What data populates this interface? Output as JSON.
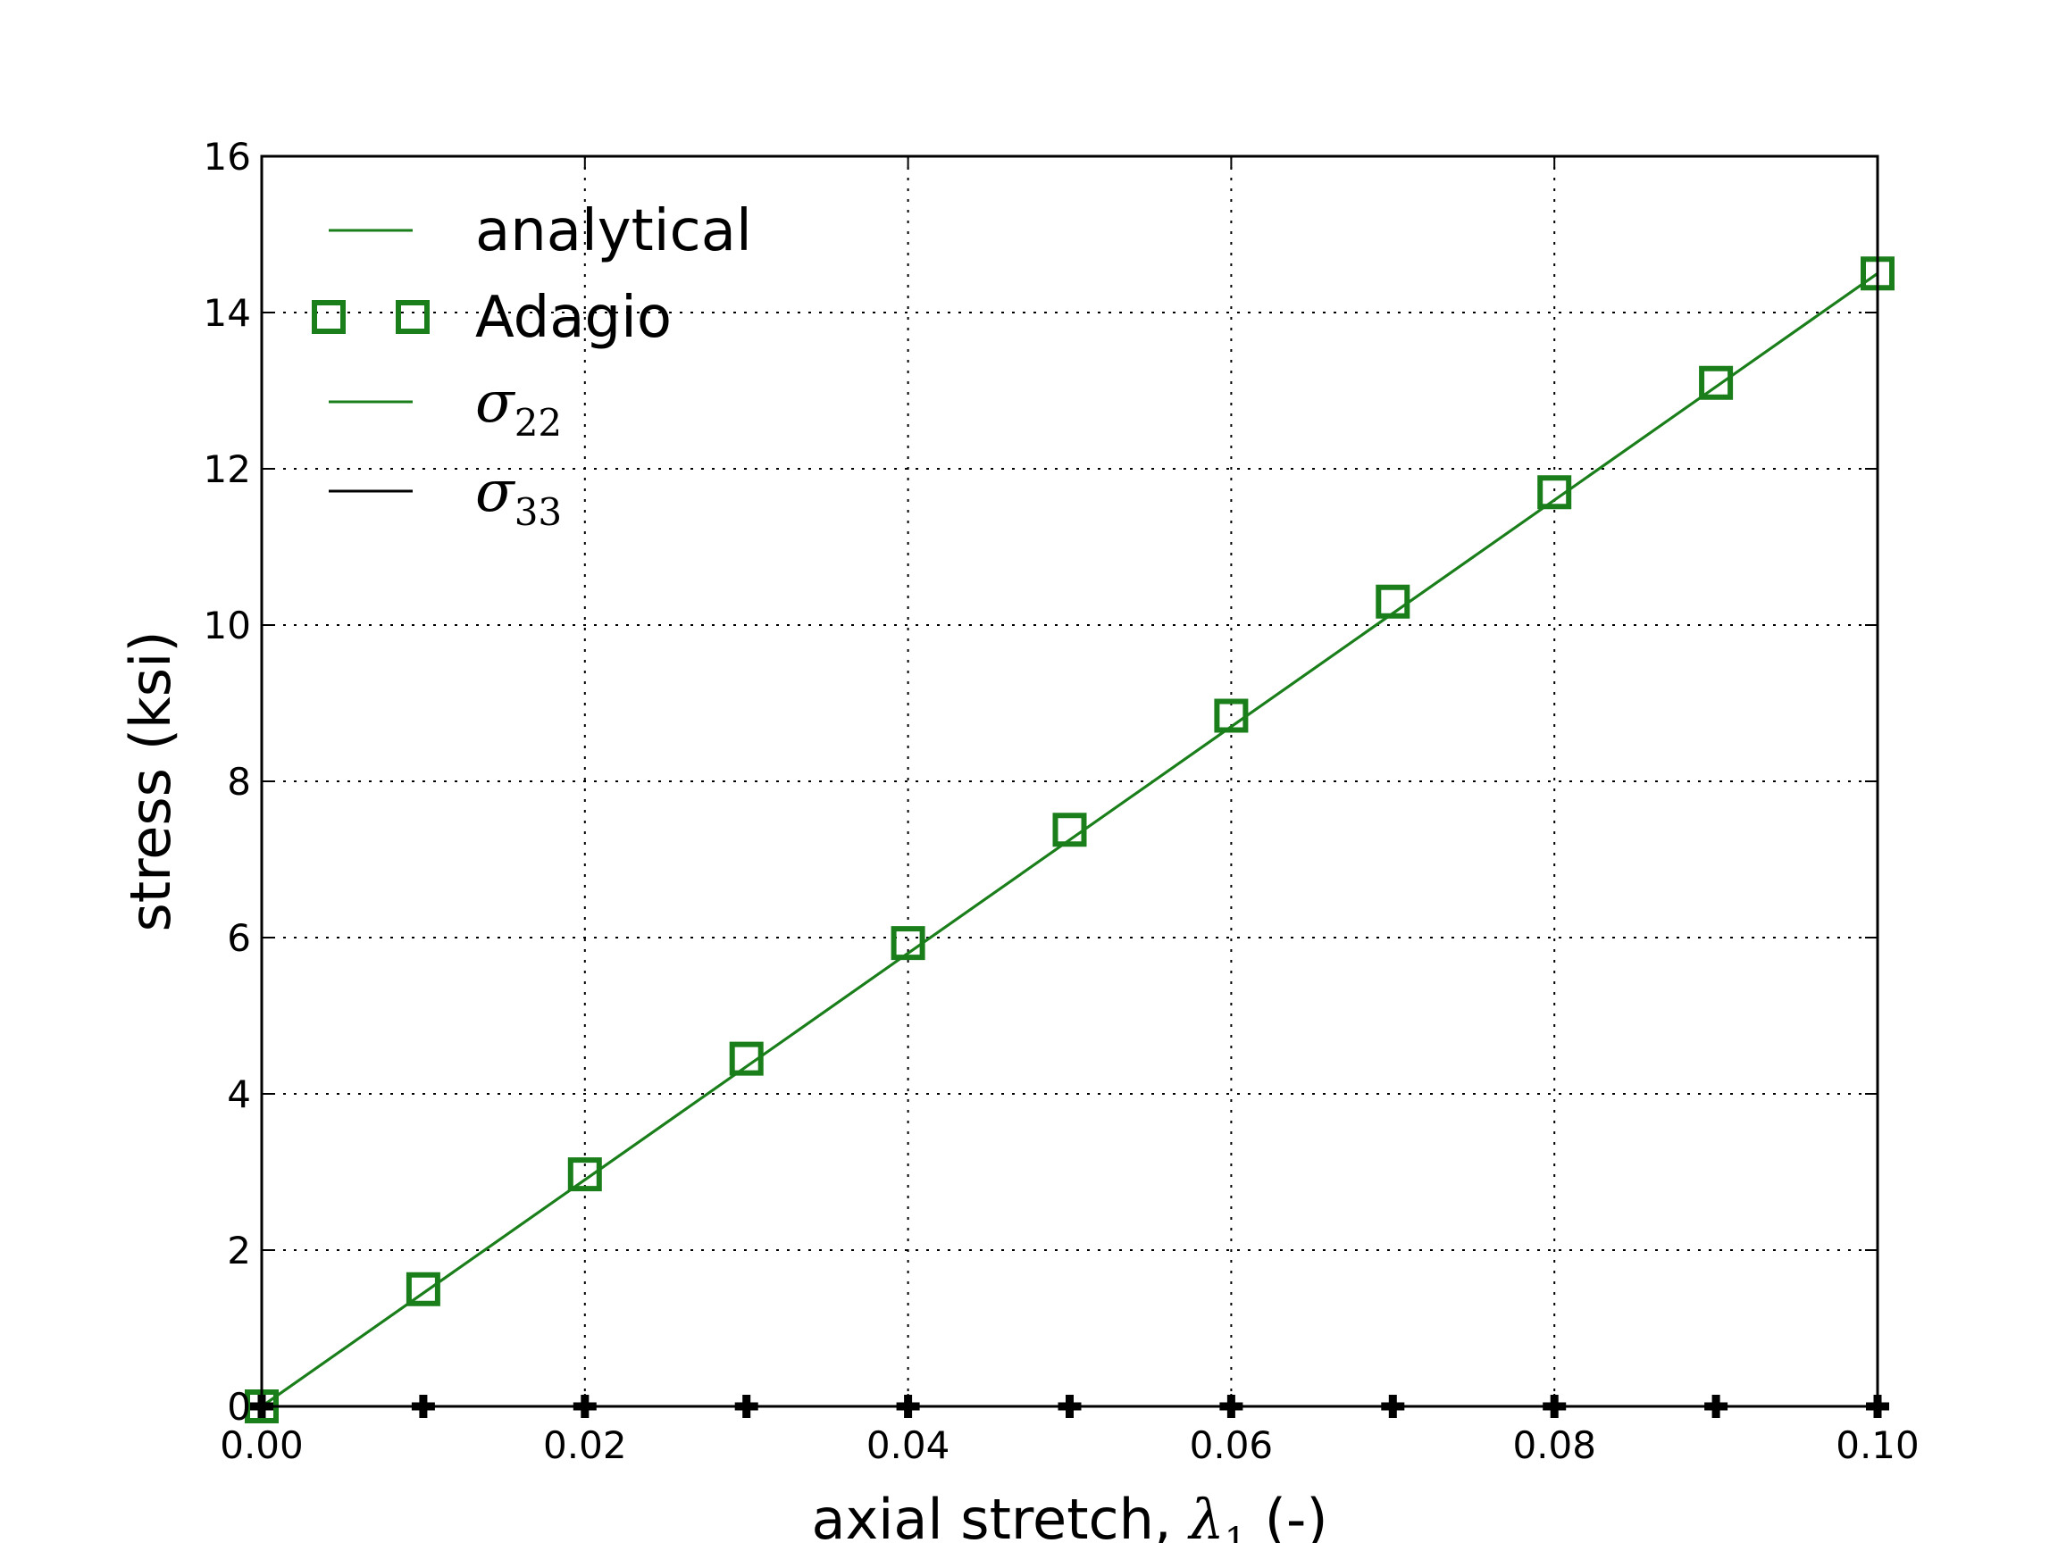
{
  "chart_data": {
    "type": "line",
    "xlabel": "axial stretch, λ₁ (-)",
    "xlabel_parts": {
      "before": "axial stretch, ",
      "symbol": "λ",
      "sub": "1",
      "after": " (-)"
    },
    "ylabel": "stress (ksi)",
    "xlim": [
      0.0,
      0.1
    ],
    "ylim": [
      0,
      16
    ],
    "x_ticks": [
      0.0,
      0.02,
      0.04,
      0.06,
      0.08,
      0.1
    ],
    "x_tick_labels": [
      "0.00",
      "0.02",
      "0.04",
      "0.06",
      "0.08",
      "0.10"
    ],
    "y_ticks": [
      0,
      2,
      4,
      6,
      8,
      10,
      12,
      14,
      16
    ],
    "y_tick_labels": [
      "0",
      "2",
      "4",
      "6",
      "8",
      "10",
      "12",
      "14",
      "16"
    ],
    "grid": true,
    "legend_position": "top-left",
    "series": [
      {
        "name": "analytical",
        "style": "line",
        "color": "#1a7f1a",
        "x": [
          0.0,
          0.1
        ],
        "y": [
          0.0,
          14.5
        ]
      },
      {
        "name": "Adagio",
        "style": "square-markers",
        "color": "#1a7f1a",
        "x": [
          0.0,
          0.01,
          0.02,
          0.03,
          0.04,
          0.05,
          0.06,
          0.07,
          0.08,
          0.09,
          0.1
        ],
        "y": [
          0.0,
          1.5,
          2.97,
          4.45,
          5.93,
          7.38,
          8.84,
          10.3,
          11.7,
          13.1,
          14.5
        ]
      },
      {
        "name": "σ22",
        "legend_symbol": "σ",
        "legend_sub": "22",
        "style": "line",
        "color": "#1a7f1a",
        "x": [
          0.0,
          0.1
        ],
        "y": [
          0.0,
          14.5
        ]
      },
      {
        "name": "σ33",
        "legend_symbol": "σ",
        "legend_sub": "33",
        "style": "line-with-markers",
        "color": "#000000",
        "x": [
          0.0,
          0.01,
          0.02,
          0.03,
          0.04,
          0.05,
          0.06,
          0.07,
          0.08,
          0.09,
          0.1
        ],
        "y": [
          0,
          0,
          0,
          0,
          0,
          0,
          0,
          0,
          0,
          0,
          0
        ]
      }
    ]
  }
}
